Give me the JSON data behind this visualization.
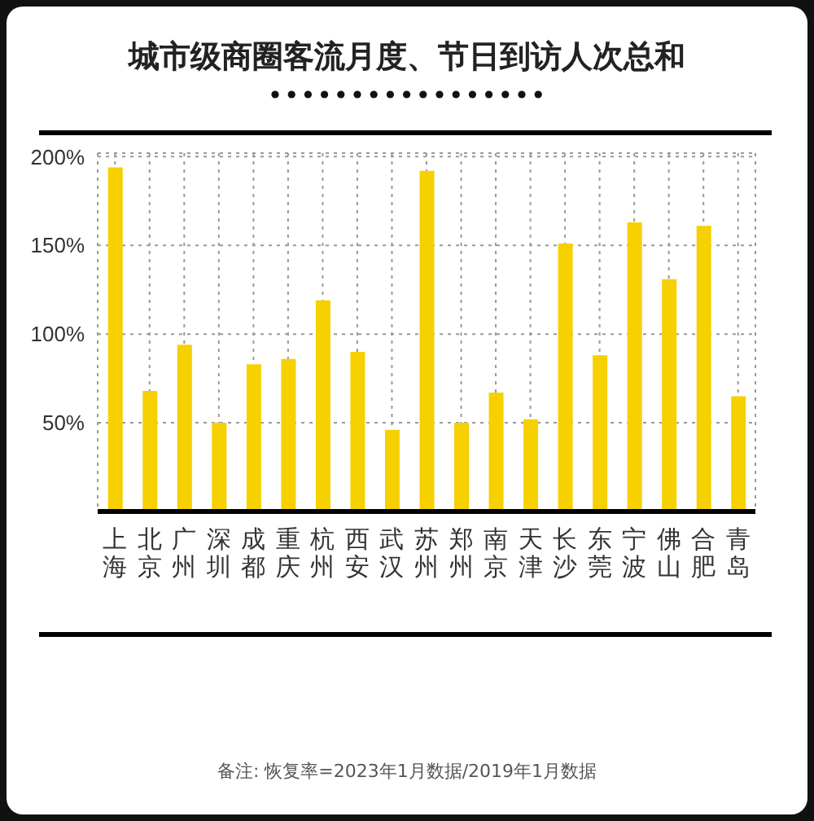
{
  "chart_data": {
    "type": "bar",
    "title": "城市级商圈客流月度、节日到访人次总和",
    "categories": [
      "上海",
      "北京",
      "广州",
      "深圳",
      "成都",
      "重庆",
      "杭州",
      "西安",
      "武汉",
      "苏州",
      "郑州",
      "南京",
      "天津",
      "长沙",
      "东莞",
      "宁波",
      "佛山",
      "合肥",
      "青岛"
    ],
    "values": [
      194,
      68,
      94,
      50,
      83,
      86,
      119,
      90,
      46,
      192,
      50,
      67,
      52,
      151,
      88,
      163,
      131,
      161,
      65
    ],
    "color": "#f7d000",
    "ylim": [
      0,
      202
    ],
    "yticks": [
      {
        "value": 50,
        "label": "50%"
      },
      {
        "value": 100,
        "label": "100%"
      },
      {
        "value": 150,
        "label": "150%"
      },
      {
        "value": 200,
        "label": "200%"
      }
    ],
    "grid": true,
    "annotations": [
      "备注: 恢复率=2023年1月数据/2019年1月数据"
    ]
  }
}
